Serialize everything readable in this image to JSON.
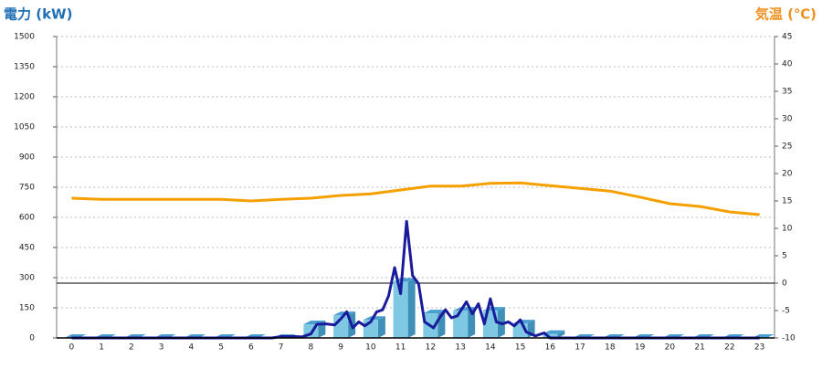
{
  "chart_data": {
    "type": "combo",
    "y_label": "電力 (kW)",
    "y2_label": "気温 (℃)",
    "categories": [
      "0",
      "1",
      "2",
      "3",
      "4",
      "5",
      "6",
      "7",
      "8",
      "9",
      "10",
      "11",
      "12",
      "13",
      "14",
      "15",
      "16",
      "17",
      "18",
      "19",
      "20",
      "21",
      "22",
      "23"
    ],
    "ylim": [
      0,
      1500
    ],
    "yticks": [
      0,
      150,
      300,
      450,
      600,
      750,
      900,
      1050,
      1200,
      1350,
      1500
    ],
    "y2lim": [
      -10,
      45
    ],
    "y2ticks": [
      -10,
      -5,
      0,
      5,
      10,
      15,
      20,
      25,
      30,
      35,
      40,
      45
    ],
    "grid": true,
    "series": [
      {
        "type": "bar",
        "color": "#7ec8e3",
        "values": [
          0,
          0,
          0,
          0,
          0,
          0,
          0,
          0,
          68,
          113,
          90,
          280,
          122,
          136,
          136,
          72,
          20,
          0,
          0,
          0,
          0,
          0,
          0,
          0
        ]
      },
      {
        "type": "line",
        "axis": "y2",
        "color": "#f5a000",
        "values": [
          15.5,
          15.3,
          15.3,
          15.3,
          15.3,
          15.3,
          15,
          15.3,
          15.5,
          16,
          16.3,
          17,
          17.7,
          17.7,
          18.2,
          18.3,
          17.8,
          17.3,
          16.8,
          15.7,
          14.5,
          14,
          13,
          12.5
        ]
      },
      {
        "type": "line",
        "color": "#1a1a9c",
        "x": [
          0,
          6.7,
          7,
          7.5,
          7.7,
          8,
          8.2,
          8.5,
          8.8,
          9,
          9.2,
          9.4,
          9.6,
          9.8,
          10,
          10.2,
          10.4,
          10.6,
          10.8,
          11,
          11.2,
          11.4,
          11.6,
          11.8,
          12,
          12.1,
          12.3,
          12.5,
          12.7,
          12.9,
          13.2,
          13.4,
          13.6,
          13.8,
          14,
          14.2,
          14.4,
          14.6,
          14.8,
          15,
          15.2,
          15.5,
          15.8,
          16,
          23
        ],
        "values": [
          0,
          0,
          7,
          7,
          5,
          20,
          68,
          70,
          65,
          95,
          130,
          50,
          80,
          60,
          80,
          130,
          140,
          210,
          350,
          220,
          580,
          310,
          270,
          80,
          60,
          50,
          100,
          140,
          100,
          110,
          180,
          120,
          170,
          70,
          195,
          80,
          70,
          80,
          60,
          90,
          30,
          10,
          25,
          0,
          0
        ]
      }
    ]
  }
}
